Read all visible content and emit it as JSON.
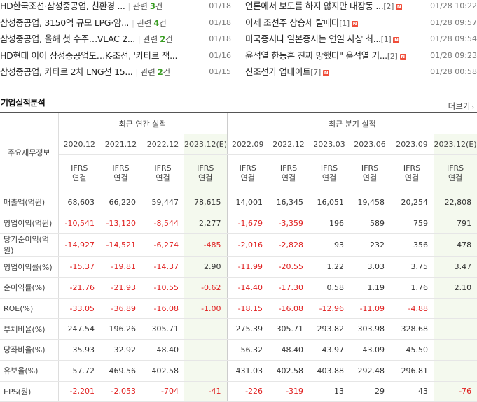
{
  "news": {
    "left": [
      {
        "title": "HD한국조선·삼성중공업, 친환경 ...",
        "related_prefix": "관련 ",
        "related_count": "3",
        "related_suffix": "건",
        "date": "01/18"
      },
      {
        "title": "삼성중공업, 3150억 규모 LPG·암...",
        "related_prefix": "관련 ",
        "related_count": "4",
        "related_suffix": "건",
        "date": "01/18"
      },
      {
        "title": "삼성중공업, 올해 첫 수주…VLAC 2...",
        "related_prefix": "관련 ",
        "related_count": "2",
        "related_suffix": "건",
        "date": "01/18"
      },
      {
        "title": "HD현대 이어 삼성중공업도…K-조선, '카타르 잭...",
        "related_prefix": "",
        "related_count": "",
        "related_suffix": "",
        "date": "01/16"
      },
      {
        "title": "삼성중공업, 카타르 2차 LNG선 15...",
        "related_prefix": "관련 ",
        "related_count": "2",
        "related_suffix": "건",
        "date": "01/15"
      }
    ],
    "right": [
      {
        "title": "언론에서 보도를 하지 않지만 대장동 ...",
        "count": "[2]",
        "badge": "N",
        "date": "01/28 10:22"
      },
      {
        "title": "이제 조선주 상승세 탈때다",
        "count": "[1]",
        "badge": "N",
        "date": "01/28 09:57"
      },
      {
        "title": "미국증시나 일본증시는 연일 사상 최...",
        "count": "[1]",
        "badge": "N",
        "date": "01/28 09:54"
      },
      {
        "title": "윤석열 한동훈 진짜 망했다\" 윤석열 기...",
        "count": "[2]",
        "badge": "N",
        "date": "01/28 09:23"
      },
      {
        "title": "신조선가 업데이트",
        "count": "[7]",
        "badge": "N",
        "date": "01/28 00:58"
      }
    ]
  },
  "section": {
    "title": "기업실적분석",
    "more_label": "더보기",
    "more_arrow": "›"
  },
  "table": {
    "row_header": "주요재무정보",
    "annual_group": "최근 연간 실적",
    "quarter_group": "최근 분기 실적",
    "periods": [
      "2020.12",
      "2021.12",
      "2022.12",
      "2023.12(E)",
      "2022.09",
      "2022.12",
      "2023.03",
      "2023.06",
      "2023.09",
      "2023.12(E)"
    ],
    "basis_line1": "IFRS",
    "basis_line2": "연결",
    "rows": [
      {
        "label": "매출액(억원)",
        "values": [
          "68,603",
          "66,220",
          "59,447",
          "78,615",
          "14,001",
          "16,345",
          "16,051",
          "19,458",
          "20,254",
          "22,808"
        ]
      },
      {
        "label": "영업이익(억원)",
        "values": [
          "-10,541",
          "-13,120",
          "-8,544",
          "2,277",
          "-1,679",
          "-3,359",
          "196",
          "589",
          "759",
          "791"
        ]
      },
      {
        "label": "당기순이익(억원)",
        "values": [
          "-14,927",
          "-14,521",
          "-6,274",
          "-485",
          "-2,016",
          "-2,828",
          "93",
          "232",
          "356",
          "478"
        ]
      },
      {
        "label": "영업이익률(%)",
        "values": [
          "-15.37",
          "-19.81",
          "-14.37",
          "2.90",
          "-11.99",
          "-20.55",
          "1.22",
          "3.03",
          "3.75",
          "3.47"
        ]
      },
      {
        "label": "순이익률(%)",
        "values": [
          "-21.76",
          "-21.93",
          "-10.55",
          "-0.62",
          "-14.40",
          "-17.30",
          "0.58",
          "1.19",
          "1.76",
          "2.10"
        ]
      },
      {
        "label": "ROE(%)",
        "values": [
          "-33.05",
          "-36.89",
          "-16.08",
          "-1.00",
          "-18.15",
          "-16.08",
          "-12.96",
          "-11.09",
          "-4.88",
          ""
        ]
      },
      {
        "label": "부채비율(%)",
        "values": [
          "247.54",
          "196.26",
          "305.71",
          "",
          "275.39",
          "305.71",
          "293.82",
          "303.98",
          "328.68",
          ""
        ]
      },
      {
        "label": "당좌비율(%)",
        "values": [
          "35.93",
          "32.92",
          "48.40",
          "",
          "56.32",
          "48.40",
          "43.97",
          "43.09",
          "45.50",
          ""
        ]
      },
      {
        "label": "유보율(%)",
        "values": [
          "57.72",
          "469.56",
          "402.58",
          "",
          "431.03",
          "402.58",
          "403.88",
          "292.48",
          "296.81",
          ""
        ]
      },
      {
        "label": "EPS(원)",
        "values": [
          "-2,201",
          "-2,053",
          "-704",
          "-41",
          "-226",
          "-319",
          "13",
          "29",
          "43",
          "-76"
        ]
      }
    ],
    "colors": {
      "negative": "#e02020",
      "basis": "#f06c0e",
      "estimate_bg": "#f4f9ee",
      "related_count": "#3a9d23",
      "badge": "#f04e3a"
    }
  }
}
